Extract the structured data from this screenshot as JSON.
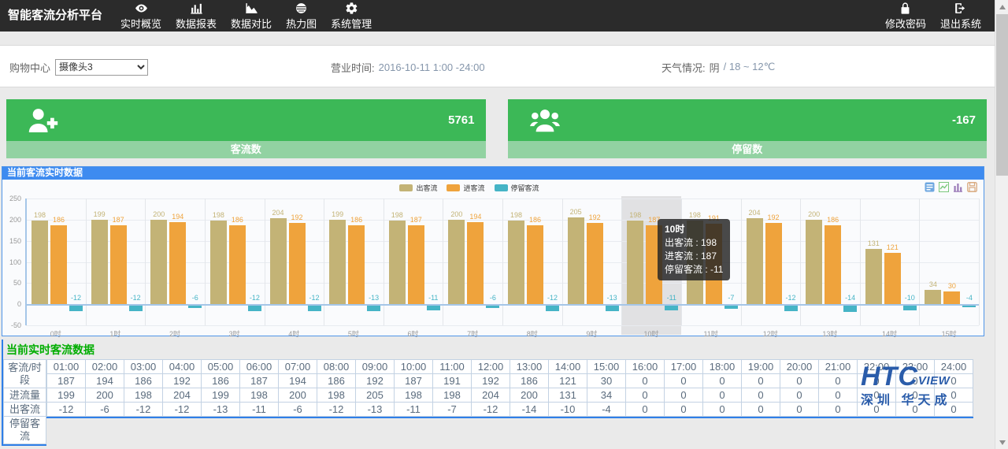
{
  "navbar": {
    "title": "智能客流分析平台",
    "menu": [
      {
        "name": "nav-realtime-overview",
        "icon": "eye-icon",
        "label": "实时概览"
      },
      {
        "name": "nav-data-report",
        "icon": "bar-chart-icon",
        "label": "数据报表"
      },
      {
        "name": "nav-data-compare",
        "icon": "area-chart-icon",
        "label": "数据对比"
      },
      {
        "name": "nav-heatmap",
        "icon": "heatmap-icon",
        "label": "热力图"
      },
      {
        "name": "nav-system-manage",
        "icon": "gear-icon",
        "label": "系统管理"
      }
    ],
    "actions": [
      {
        "name": "change-password",
        "icon": "lock-icon",
        "label": "修改密码"
      },
      {
        "name": "logout",
        "icon": "logout-icon",
        "label": "退出系统"
      }
    ]
  },
  "filter_bar": {
    "mall_label": "购物中心",
    "camera_select": {
      "value": "摄像头3"
    },
    "business_hours_label": "营业时间:",
    "business_hours_value": "2016-10-11 1:00 -24:00",
    "weather_label": "天气情况:",
    "weather_condition": "阴",
    "weather_temp": "/ 18 ~ 12℃"
  },
  "stat_cards": [
    {
      "icon": "user-add-icon",
      "value": "5761",
      "label": "客流数"
    },
    {
      "icon": "users-group-icon",
      "value": "-167",
      "label": "停留数"
    }
  ],
  "chart_panel": {
    "header": "当前客流实时数据"
  },
  "chart_data": {
    "type": "bar",
    "title": "",
    "categories": [
      "0时",
      "1时",
      "2时",
      "3时",
      "4时",
      "5时",
      "6时",
      "7时",
      "8时",
      "9时",
      "10时",
      "11时",
      "12时",
      "13时",
      "14时",
      "15时"
    ],
    "series": [
      {
        "key": "out",
        "name": "出客流",
        "color": "#c3b376",
        "values": [
          198,
          199,
          200,
          198,
          204,
          199,
          198,
          200,
          198,
          205,
          198,
          198,
          204,
          200,
          131,
          34
        ]
      },
      {
        "key": "in",
        "name": "进客流",
        "color": "#efa33c",
        "values": [
          186,
          187,
          194,
          186,
          192,
          186,
          187,
          194,
          186,
          192,
          187,
          191,
          192,
          186,
          121,
          30
        ]
      },
      {
        "key": "stay",
        "name": "停留客流",
        "color": "#45b4c6",
        "values": [
          -12,
          -12,
          -6,
          -12,
          -12,
          -13,
          -11,
          -6,
          -12,
          -13,
          -11,
          -7,
          -12,
          -14,
          -10,
          -4
        ]
      }
    ],
    "ylim": [
      -50,
      250
    ],
    "yticks": [
      250,
      200,
      150,
      100,
      50,
      0,
      -50
    ],
    "grid": true,
    "legend_position": "top-center",
    "highlight_index": 10,
    "tooltip": {
      "title": "10时",
      "lines": [
        "出客流 : 198",
        "进客流 : 187",
        "停留客流 : -11"
      ]
    },
    "toolbox": [
      "data-view-icon",
      "line-switch-icon",
      "bar-switch-icon",
      "save-image-icon"
    ]
  },
  "table_section": {
    "title": "当前实时客流数据",
    "row_labels": [
      "客流/时段",
      "进流量",
      "出客流",
      "停留客流"
    ],
    "columns": [
      "01:00",
      "02:00",
      "03:00",
      "04:00",
      "05:00",
      "06:00",
      "07:00",
      "08:00",
      "09:00",
      "10:00",
      "11:00",
      "12:00",
      "13:00",
      "14:00",
      "15:00",
      "16:00",
      "17:00",
      "18:00",
      "19:00",
      "20:00",
      "21:00",
      "22:00",
      "23:00",
      "24:00"
    ],
    "rows": [
      [
        187,
        194,
        186,
        192,
        186,
        187,
        194,
        186,
        192,
        187,
        191,
        192,
        186,
        121,
        30,
        0,
        0,
        0,
        0,
        0,
        0,
        0,
        0,
        0
      ],
      [
        199,
        200,
        198,
        204,
        199,
        198,
        200,
        198,
        205,
        198,
        198,
        204,
        200,
        131,
        34,
        0,
        0,
        0,
        0,
        0,
        0,
        0,
        0,
        0
      ],
      [
        -12,
        -6,
        -12,
        -12,
        -13,
        -11,
        -6,
        -12,
        -13,
        -11,
        -7,
        -12,
        -14,
        -10,
        -4,
        0,
        0,
        0,
        0,
        0,
        0,
        0,
        0,
        0
      ]
    ]
  },
  "logo": {
    "text_main": "HTC",
    "text_sub": "VIEW",
    "company": "深圳 华天成"
  }
}
